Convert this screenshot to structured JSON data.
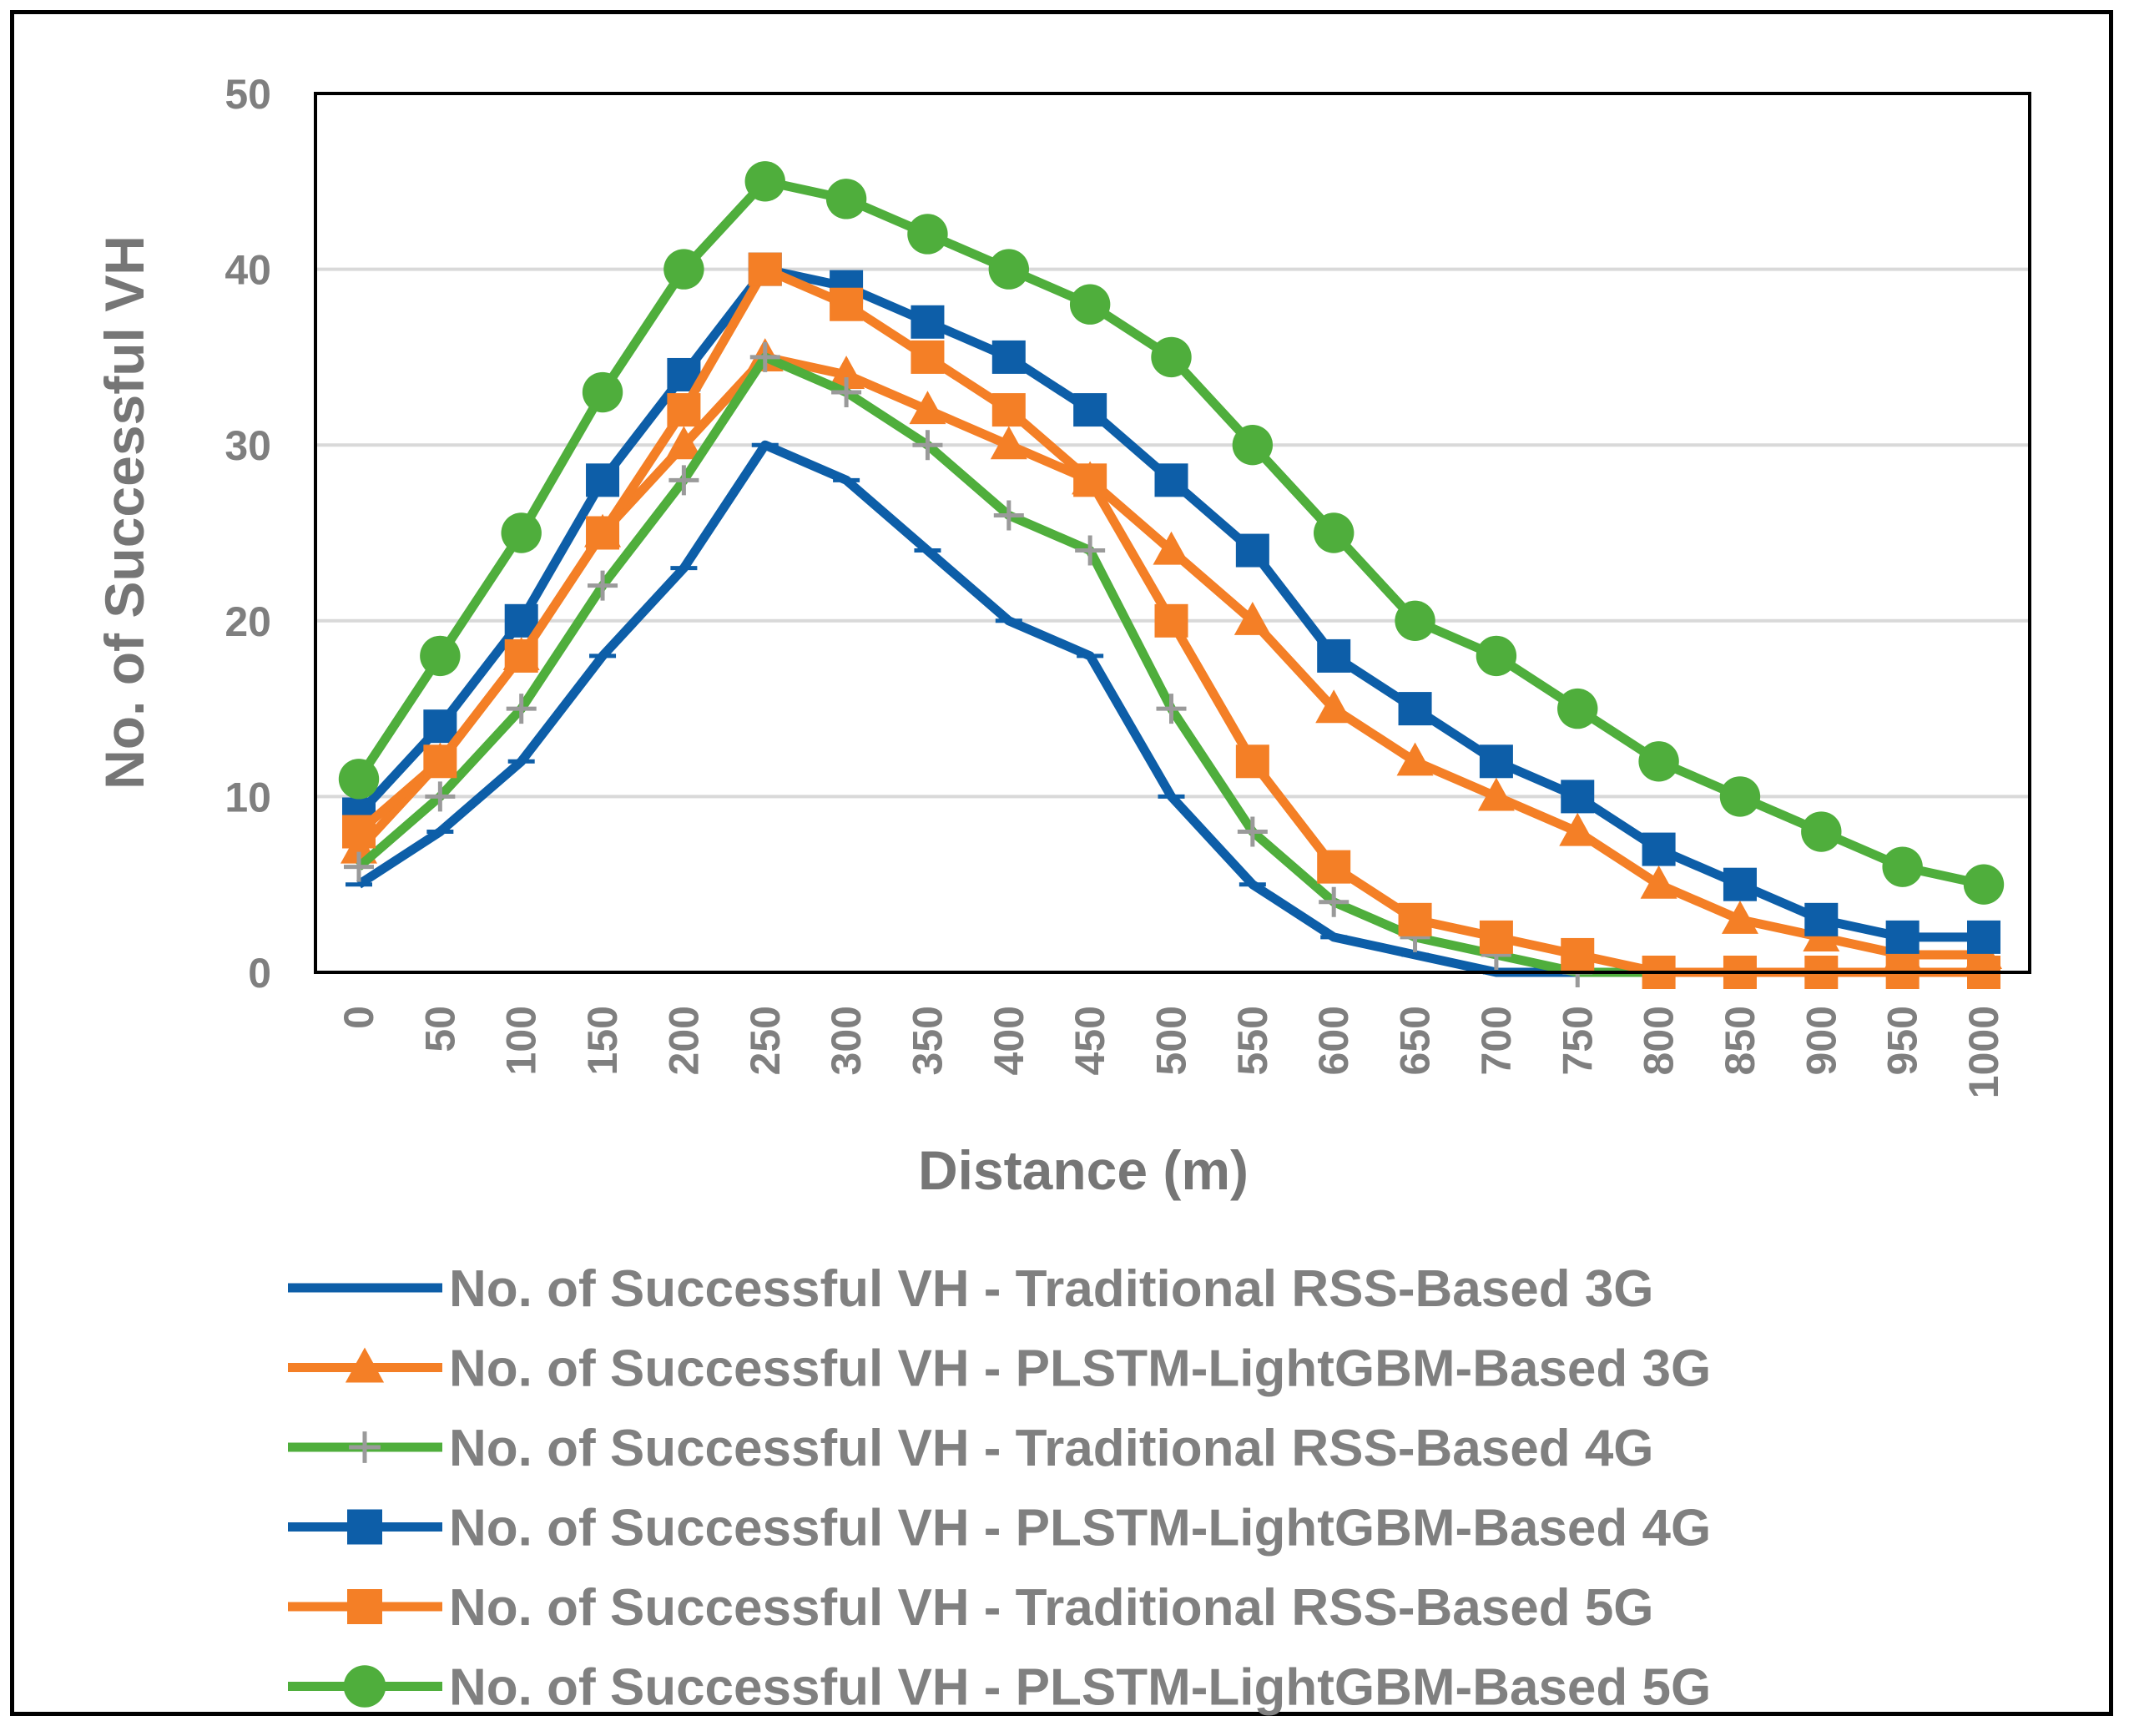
{
  "chart_data": {
    "type": "line",
    "title": "",
    "xlabel": "Distance (m)",
    "ylabel": "No. of Successful VH",
    "ylim": [
      0,
      50
    ],
    "yticks": [
      0,
      10,
      20,
      30,
      40,
      50
    ],
    "grid": true,
    "legend_position": "bottom",
    "categories": [
      "0",
      "50",
      "100",
      "150",
      "200",
      "250",
      "300",
      "350",
      "400",
      "450",
      "500",
      "550",
      "600",
      "650",
      "700",
      "750",
      "800",
      "850",
      "900",
      "950",
      "1000"
    ],
    "series": [
      {
        "name": "No. of Successful VH - Traditional RSS-Based 3G",
        "color": "#0d5ea8",
        "marker": "dash",
        "values": [
          5,
          8,
          12,
          18,
          23,
          30,
          28,
          24,
          20,
          18,
          10,
          5,
          2,
          1,
          0,
          0,
          0,
          0,
          0,
          0,
          0
        ]
      },
      {
        "name": "No. of Successful VH - PLSTM-LightGBM-Based 3G",
        "color": "#f47f26",
        "marker": "triangle",
        "values": [
          7,
          12,
          18,
          25,
          30,
          35,
          34,
          32,
          30,
          28,
          24,
          20,
          15,
          12,
          10,
          8,
          5,
          3,
          2,
          1,
          1
        ]
      },
      {
        "name": "No. of Successful VH - Traditional RSS-Based 4G",
        "color": "#4fae3c",
        "marker": "plus",
        "marker_color": "#9a9a9a",
        "values": [
          6,
          10,
          15,
          22,
          28,
          35,
          33,
          30,
          26,
          24,
          15,
          8,
          4,
          2,
          1,
          0,
          0,
          0,
          0,
          0,
          0
        ]
      },
      {
        "name": "No. of Successful VH - PLSTM-LightGBM-Based 4G",
        "color": "#0d5ea8",
        "marker": "square",
        "values": [
          9,
          14,
          20,
          28,
          34,
          40,
          39,
          37,
          35,
          32,
          28,
          24,
          18,
          15,
          12,
          10,
          7,
          5,
          3,
          2,
          2
        ]
      },
      {
        "name": "No. of Successful VH - Traditional RSS-Based 5G",
        "color": "#f47f26",
        "marker": "square",
        "values": [
          8,
          12,
          18,
          25,
          32,
          40,
          38,
          35,
          32,
          28,
          20,
          12,
          6,
          3,
          2,
          1,
          0,
          0,
          0,
          0,
          0
        ]
      },
      {
        "name": "No. of Successful VH - PLSTM-LightGBM-Based 5G",
        "color": "#4fae3c",
        "marker": "circle",
        "values": [
          11,
          18,
          25,
          33,
          40,
          45,
          44,
          42,
          40,
          38,
          35,
          30,
          25,
          20,
          18,
          15,
          12,
          10,
          8,
          6,
          5
        ]
      }
    ]
  }
}
